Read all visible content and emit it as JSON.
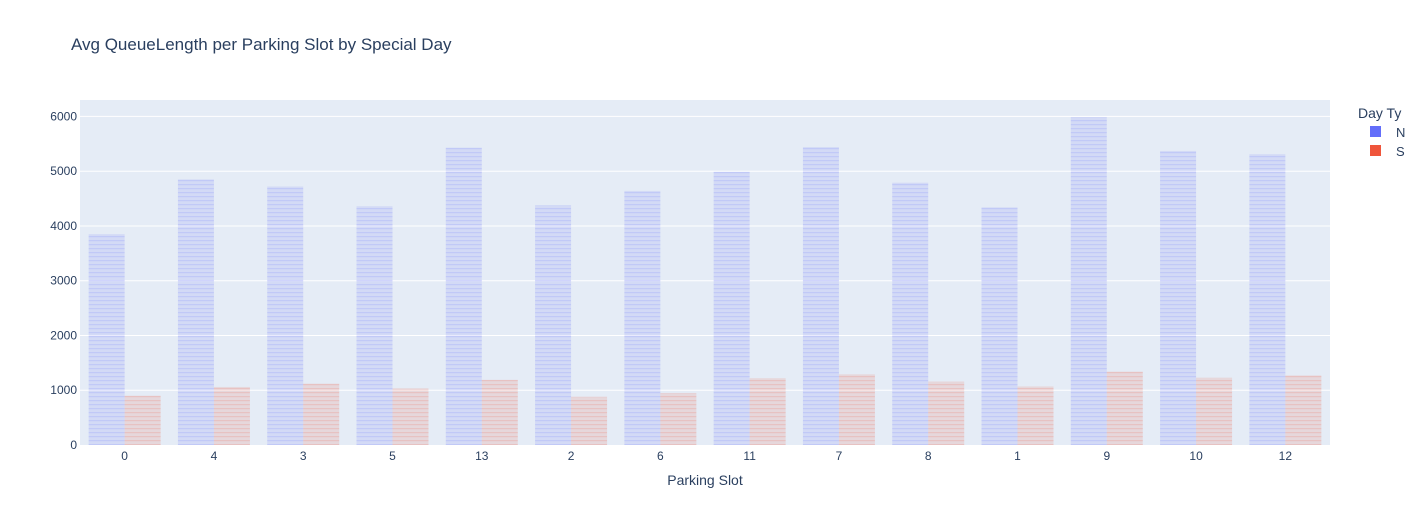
{
  "chart_data": {
    "type": "bar",
    "title": "Avg QueueLength per Parking Slot by Special Day",
    "xlabel": "Parking Slot",
    "ylabel": "",
    "ylim": [
      0,
      6300
    ],
    "yticks": [
      0,
      1000,
      2000,
      3000,
      4000,
      5000,
      6000
    ],
    "categories": [
      "0",
      "4",
      "3",
      "5",
      "13",
      "2",
      "6",
      "11",
      "7",
      "8",
      "1",
      "9",
      "10",
      "12"
    ],
    "legend_title": "Day Ty",
    "legend_position": "top-right",
    "grid": true,
    "series": [
      {
        "name": "N",
        "color": "#636efa",
        "values": [
          3850,
          4850,
          4720,
          4360,
          5430,
          4380,
          4640,
          4990,
          5440,
          4790,
          4340,
          5990,
          5370,
          5310
        ]
      },
      {
        "name": "S",
        "color": "#ef553b",
        "values": [
          900,
          1060,
          1120,
          1030,
          1190,
          880,
          950,
          1220,
          1290,
          1160,
          1070,
          1340,
          1230,
          1270
        ]
      }
    ]
  },
  "colors": {
    "plot_bg": "#e5ecf6",
    "grid": "#ffffff",
    "text": "#2a3f5f"
  }
}
